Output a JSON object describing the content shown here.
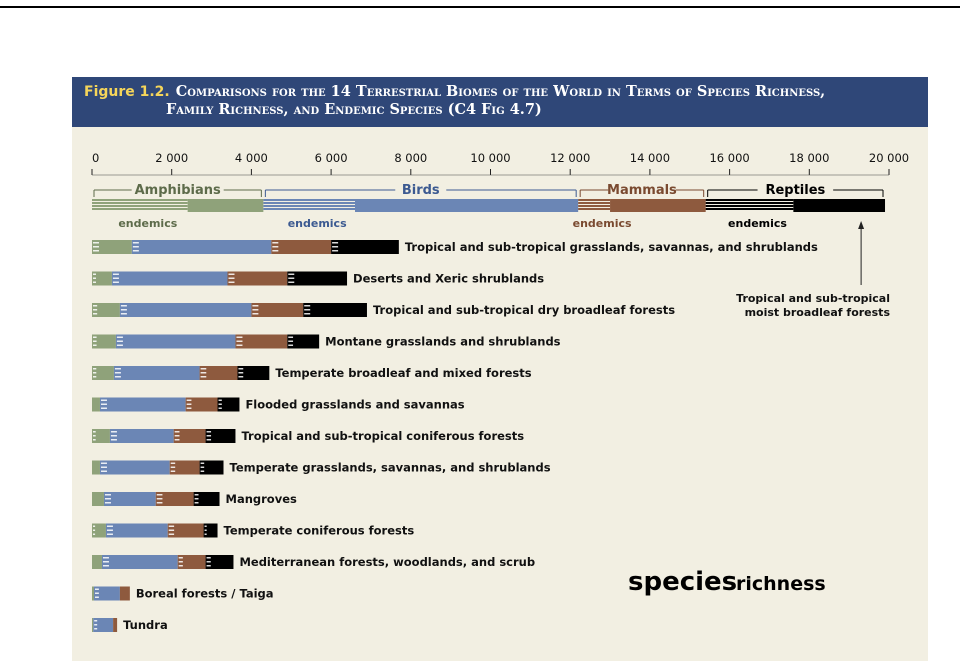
{
  "figure": {
    "number": "Figure 1.2.",
    "title_line1": "Comparisons for the 14 Terrestrial Biomes of the World in Terms of Species Richness,",
    "title_line2": "Family Richness, and Endemic Species (C4 Fig 4.7)"
  },
  "chart_data": {
    "type": "bar",
    "orientation": "horizontal",
    "stacked": true,
    "xlim": [
      0,
      20000
    ],
    "x_ticks": [
      "0",
      "2 000",
      "4 000",
      "6 000",
      "8 000",
      "10 000",
      "12 000",
      "14 000",
      "16 000",
      "18 000",
      "20 000"
    ],
    "x_tick_values": [
      0,
      2000,
      4000,
      6000,
      8000,
      10000,
      12000,
      14000,
      16000,
      18000,
      20000
    ],
    "colors": {
      "Amphibians": "#8fa27a",
      "Birds": "#6b86b5",
      "Mammals": "#8e5a3e",
      "Reptiles": "#000000"
    },
    "legend_groups": [
      {
        "name": "Amphibians",
        "start": 0,
        "end": 4300,
        "endemics_end": 2400,
        "endemics_label": "endemics"
      },
      {
        "name": "Birds",
        "start": 4300,
        "end": 12200,
        "endemics_end": 6600,
        "endemics_label": "endemics"
      },
      {
        "name": "Mammals",
        "start": 12200,
        "end": 15400,
        "endemics_end": 13000,
        "endemics_label": "endemics"
      },
      {
        "name": "Reptiles",
        "start": 15400,
        "end": 19900,
        "endemics_end": 17600,
        "endemics_label": "endemics"
      }
    ],
    "reference_biome": "Tropical and sub-tropical moist broadleaf forests",
    "categories": [
      "Tropical and sub-tropical grasslands, savannas, and shrublands",
      "Deserts and Xeric shrublands",
      "Tropical and sub-tropical dry broadleaf forests",
      "Montane grasslands and shrublands",
      "Temperate broadleaf and mixed forests",
      "Flooded grasslands and savannas",
      "Tropical and sub-tropical coniferous forests",
      "Temperate grasslands, savannas, and shrublands",
      "Mangroves",
      "Temperate coniferous forests",
      "Mediterranean forests, woodlands, and scrub",
      "Boreal forests / Taiga",
      "Tundra"
    ],
    "series": [
      {
        "name": "Amphibians",
        "values": [
          1000,
          500,
          700,
          600,
          550,
          200,
          450,
          200,
          300,
          350,
          250,
          50,
          30
        ]
      },
      {
        "name": "Birds",
        "values": [
          3500,
          2900,
          3300,
          3000,
          2150,
          2150,
          1600,
          1750,
          1300,
          1550,
          1900,
          650,
          500
        ]
      },
      {
        "name": "Mammals",
        "values": [
          1500,
          1500,
          1300,
          1300,
          950,
          800,
          800,
          750,
          950,
          900,
          700,
          250,
          100
        ]
      },
      {
        "name": "Reptiles",
        "values": [
          1700,
          1500,
          1600,
          800,
          800,
          550,
          750,
          600,
          650,
          350,
          700,
          0,
          0
        ]
      }
    ],
    "annotation": {
      "species": "species",
      "richness": "richness"
    }
  }
}
